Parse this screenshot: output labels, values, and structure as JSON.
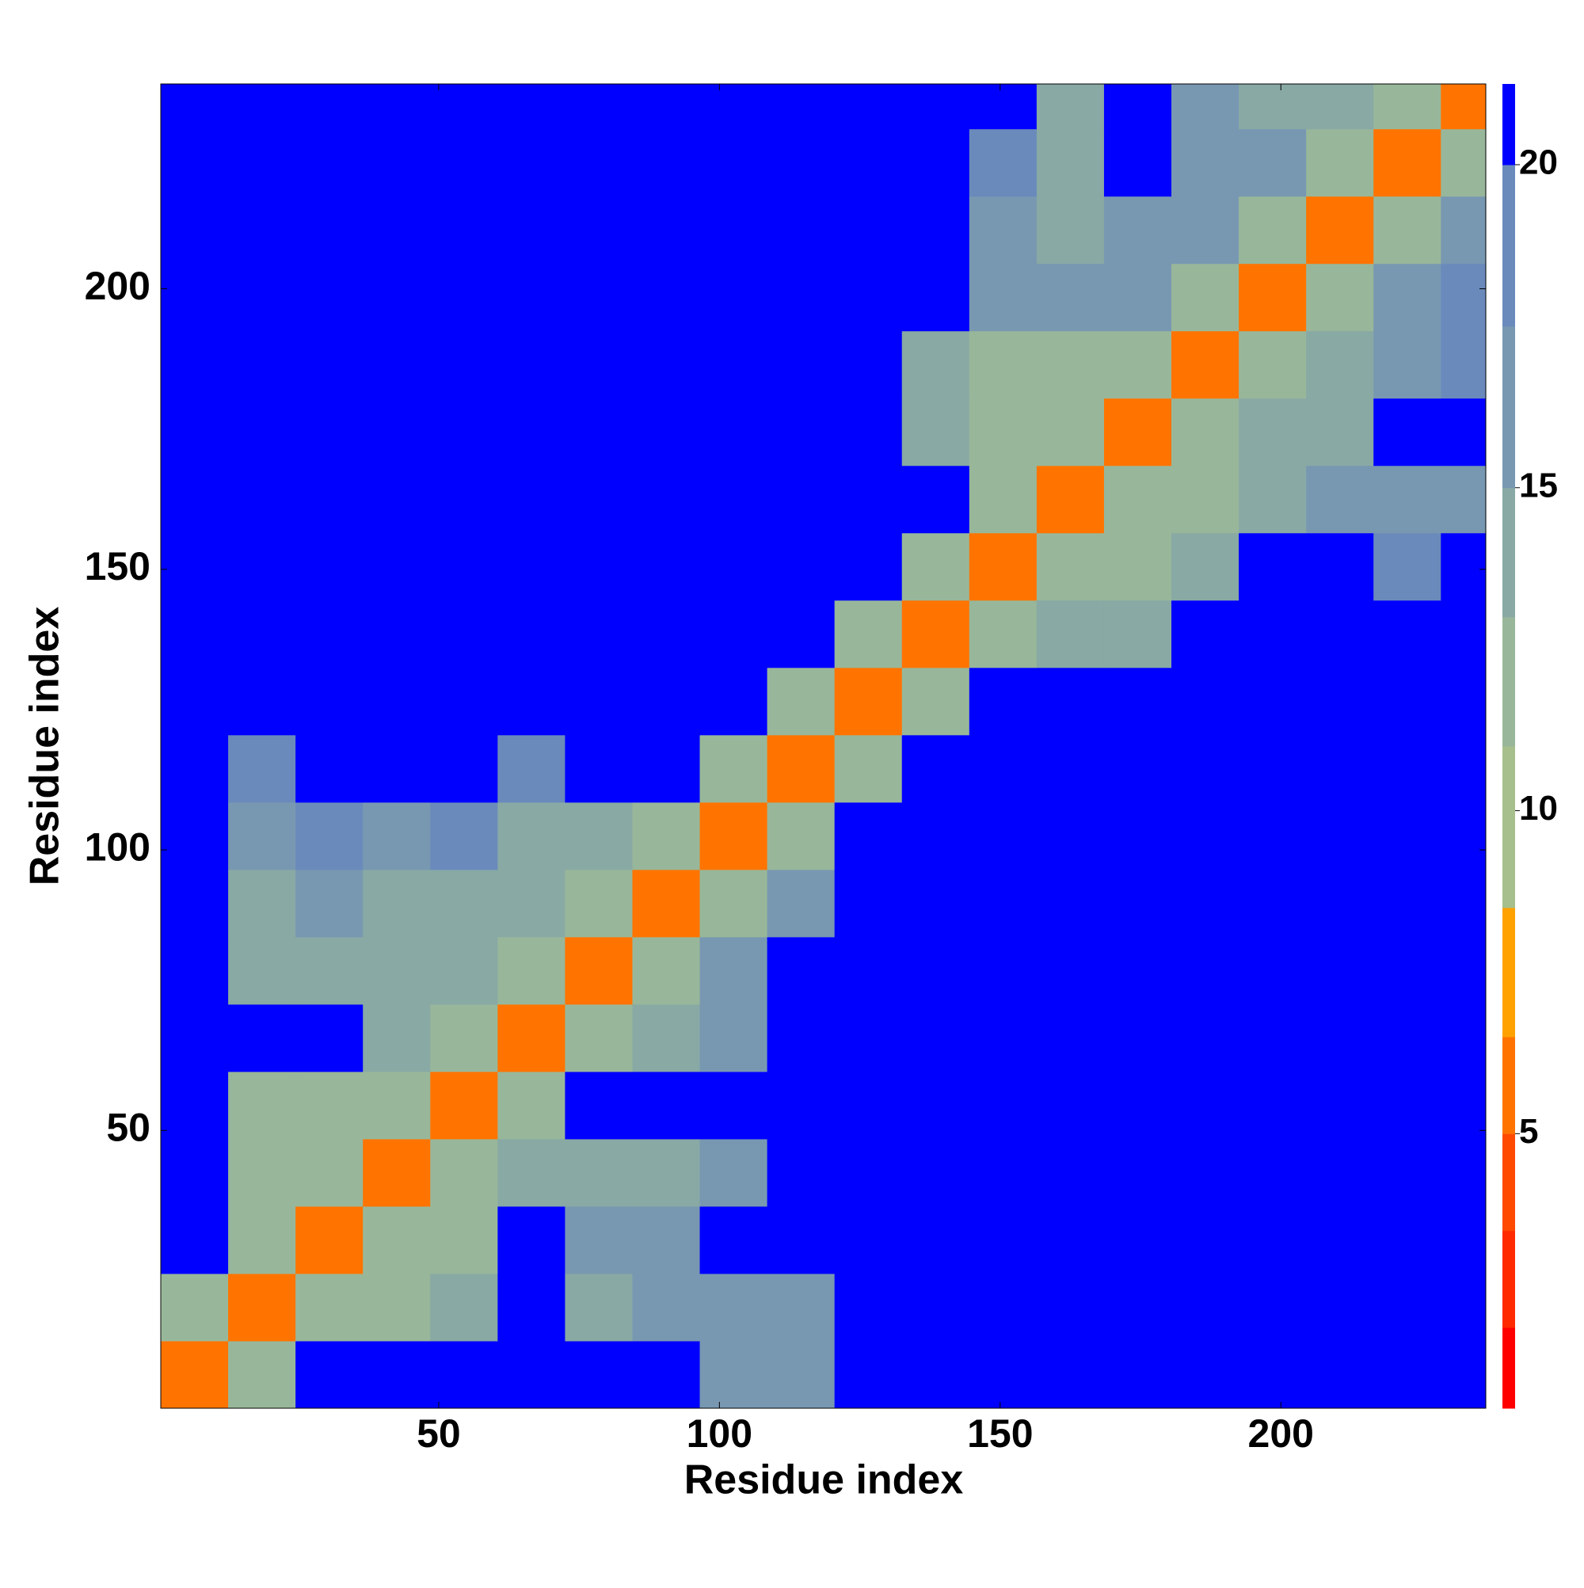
{
  "chart_data": {
    "type": "heatmap",
    "xlabel": "Residue index",
    "ylabel": "Residue index",
    "xlim": [
      0.5,
      236.5
    ],
    "ylim": [
      0.5,
      236.5
    ],
    "xticks": [
      50,
      100,
      150,
      200
    ],
    "yticks": [
      50,
      100,
      150,
      200
    ],
    "xbins": [
      0.5,
      12.5,
      24.5,
      36.5,
      48.5,
      60.5,
      72.5,
      84.5,
      96.5,
      108.5,
      120.5,
      132.5,
      144.5,
      156.5,
      168.5,
      180.5,
      192.5,
      204.5,
      216.5,
      228.5,
      236.5
    ],
    "ybins": [
      0.5,
      12.5,
      24.5,
      36.5,
      48.5,
      60.5,
      72.5,
      84.5,
      96.5,
      108.5,
      120.5,
      132.5,
      144.5,
      156.5,
      168.5,
      180.5,
      192.5,
      204.5,
      216.5,
      228.5,
      236.5
    ],
    "z": [
      [
        6,
        12,
        21,
        21,
        21,
        21,
        21,
        21,
        16,
        16,
        21,
        21,
        21,
        21,
        21,
        21,
        21,
        21,
        21,
        21
      ],
      [
        12,
        6,
        12,
        13,
        14,
        21,
        15,
        16,
        16,
        17,
        21,
        21,
        21,
        21,
        21,
        21,
        21,
        21,
        21,
        21
      ],
      [
        21,
        12,
        6,
        12,
        13,
        21,
        17,
        17,
        21,
        21,
        21,
        21,
        21,
        21,
        21,
        21,
        21,
        21,
        21,
        21
      ],
      [
        21,
        13,
        12,
        6,
        12,
        15,
        14,
        15,
        16,
        21,
        21,
        21,
        21,
        21,
        21,
        21,
        21,
        21,
        21,
        21
      ],
      [
        21,
        13,
        13,
        12,
        6,
        12,
        21,
        21,
        21,
        21,
        21,
        21,
        21,
        21,
        21,
        21,
        21,
        21,
        21,
        21
      ],
      [
        21,
        21,
        21,
        15,
        12,
        6,
        12,
        15,
        16,
        21,
        21,
        21,
        21,
        21,
        21,
        21,
        21,
        21,
        21,
        21
      ],
      [
        21,
        14,
        15,
        14,
        14,
        12,
        6,
        12,
        17,
        21,
        21,
        21,
        21,
        21,
        21,
        21,
        21,
        21,
        21,
        21
      ],
      [
        21,
        15,
        16,
        14,
        14,
        14,
        12,
        6,
        12,
        17,
        21,
        21,
        21,
        21,
        21,
        21,
        21,
        21,
        21,
        21
      ],
      [
        21,
        16,
        18,
        16,
        18,
        15,
        15,
        12,
        6,
        12,
        21,
        21,
        21,
        21,
        21,
        21,
        21,
        21,
        21,
        21
      ],
      [
        21,
        19,
        21,
        21,
        21,
        19,
        21,
        21,
        12,
        6,
        13,
        21,
        21,
        21,
        21,
        21,
        21,
        21,
        21,
        21
      ],
      [
        21,
        21,
        21,
        21,
        21,
        21,
        21,
        21,
        21,
        13,
        6,
        13,
        21,
        21,
        21,
        21,
        21,
        21,
        21,
        21
      ],
      [
        21,
        21,
        21,
        21,
        21,
        21,
        21,
        21,
        21,
        21,
        13,
        6,
        12,
        14,
        15,
        21,
        21,
        21,
        21,
        21
      ],
      [
        21,
        21,
        21,
        21,
        21,
        21,
        21,
        21,
        21,
        21,
        21,
        12,
        6,
        12,
        13,
        14,
        21,
        21,
        18,
        21
      ],
      [
        21,
        21,
        21,
        21,
        21,
        21,
        21,
        21,
        21,
        21,
        21,
        21,
        12,
        6,
        12,
        13,
        15,
        16,
        16,
        16
      ],
      [
        21,
        21,
        21,
        21,
        21,
        21,
        21,
        21,
        21,
        21,
        21,
        14,
        13,
        12,
        6,
        12,
        14,
        15,
        21,
        21
      ],
      [
        21,
        21,
        21,
        21,
        21,
        21,
        21,
        21,
        21,
        21,
        21,
        14,
        13,
        13,
        12,
        6,
        12,
        15,
        17,
        18
      ],
      [
        21,
        21,
        21,
        21,
        21,
        21,
        21,
        21,
        21,
        21,
        21,
        21,
        17,
        16,
        16,
        12,
        6,
        12,
        17,
        18
      ],
      [
        21,
        21,
        21,
        21,
        21,
        21,
        21,
        21,
        21,
        21,
        21,
        21,
        16,
        15,
        17,
        16,
        12,
        6,
        12,
        17
      ],
      [
        21,
        21,
        21,
        21,
        21,
        21,
        21,
        21,
        21,
        21,
        21,
        21,
        18,
        15,
        21,
        16,
        16,
        12,
        6,
        12
      ],
      [
        21,
        21,
        21,
        21,
        21,
        21,
        21,
        21,
        21,
        21,
        21,
        21,
        21,
        15,
        21,
        17,
        15,
        15,
        12,
        6
      ]
    ],
    "zlim": [
      0.75,
      21.25
    ],
    "zticks": [
      5,
      10,
      15,
      20
    ],
    "levels": [
      0.75,
      2,
      3.5,
      5,
      6.5,
      8.5,
      11,
      13,
      15,
      17.5,
      20,
      21.25
    ],
    "colors": [
      "#ff0000",
      "#ff2a00",
      "#ff4a00",
      "#ff7400",
      "#ffa200",
      "#a6bf8c",
      "#98b79a",
      "#88a9a4",
      "#7898b2",
      "#6a8abc",
      "#0000ff"
    ]
  }
}
